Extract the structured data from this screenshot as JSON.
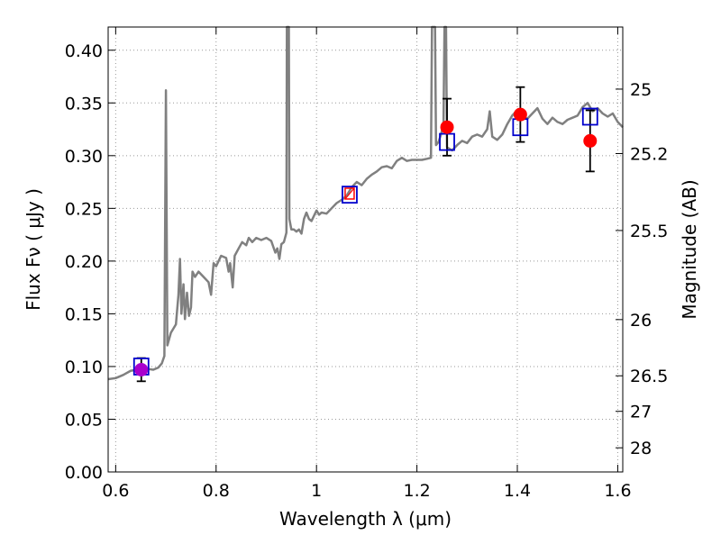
{
  "chart_data": {
    "type": "line",
    "xlabel": "Wavelength  λ (μm)",
    "ylabel": "Flux  Fν  ( μJy )",
    "y2label": "Magnitude (AB)",
    "xlim": [
      0.585,
      1.61
    ],
    "ylim": [
      0.0,
      0.422
    ],
    "grid": true,
    "x_ticks": [
      {
        "value": 0.6,
        "label": "0.6"
      },
      {
        "value": 0.8,
        "label": "0.8"
      },
      {
        "value": 1.0,
        "label": "1"
      },
      {
        "value": 1.2,
        "label": "1.2"
      },
      {
        "value": 1.4,
        "label": "1.4"
      },
      {
        "value": 1.6,
        "label": "1.6"
      }
    ],
    "y_ticks": [
      {
        "value": 0.0,
        "label": "0.00"
      },
      {
        "value": 0.05,
        "label": "0.05"
      },
      {
        "value": 0.1,
        "label": "0.10"
      },
      {
        "value": 0.15,
        "label": "0.15"
      },
      {
        "value": 0.2,
        "label": "0.20"
      },
      {
        "value": 0.25,
        "label": "0.25"
      },
      {
        "value": 0.3,
        "label": "0.30"
      },
      {
        "value": 0.35,
        "label": "0.35"
      },
      {
        "value": 0.4,
        "label": "0.40"
      }
    ],
    "y2_ticks": [
      {
        "flux": 0.3631,
        "label": "25"
      },
      {
        "flux": 0.302,
        "label": "25.2"
      },
      {
        "flux": 0.229,
        "label": "25.5"
      },
      {
        "flux": 0.1445,
        "label": "26"
      },
      {
        "flux": 0.0912,
        "label": "26.5"
      },
      {
        "flux": 0.0575,
        "label": "27"
      },
      {
        "flux": 0.0229,
        "label": "28"
      }
    ],
    "colors": {
      "spectrum": "#808080",
      "observed": "#ff0000",
      "model": "#0000cc",
      "overlap": "#aa00cc",
      "errorbar": "#000000",
      "grid": "#999999"
    },
    "series": [
      {
        "kind": "model_spectrum",
        "points": [
          [
            0.585,
            0.088
          ],
          [
            0.6,
            0.089
          ],
          [
            0.615,
            0.092
          ],
          [
            0.63,
            0.096
          ],
          [
            0.645,
            0.097
          ],
          [
            0.66,
            0.098
          ],
          [
            0.675,
            0.097
          ],
          [
            0.685,
            0.099
          ],
          [
            0.692,
            0.103
          ],
          [
            0.697,
            0.11
          ],
          [
            0.7,
            0.362
          ],
          [
            0.703,
            0.12
          ],
          [
            0.71,
            0.132
          ],
          [
            0.72,
            0.14
          ],
          [
            0.725,
            0.168
          ],
          [
            0.728,
            0.202
          ],
          [
            0.731,
            0.15
          ],
          [
            0.735,
            0.178
          ],
          [
            0.738,
            0.145
          ],
          [
            0.742,
            0.17
          ],
          [
            0.746,
            0.148
          ],
          [
            0.75,
            0.156
          ],
          [
            0.753,
            0.19
          ],
          [
            0.758,
            0.185
          ],
          [
            0.765,
            0.19
          ],
          [
            0.775,
            0.185
          ],
          [
            0.785,
            0.18
          ],
          [
            0.79,
            0.168
          ],
          [
            0.795,
            0.198
          ],
          [
            0.8,
            0.195
          ],
          [
            0.81,
            0.205
          ],
          [
            0.82,
            0.203
          ],
          [
            0.825,
            0.19
          ],
          [
            0.828,
            0.198
          ],
          [
            0.833,
            0.175
          ],
          [
            0.837,
            0.205
          ],
          [
            0.845,
            0.212
          ],
          [
            0.852,
            0.218
          ],
          [
            0.86,
            0.215
          ],
          [
            0.865,
            0.222
          ],
          [
            0.872,
            0.218
          ],
          [
            0.88,
            0.222
          ],
          [
            0.89,
            0.22
          ],
          [
            0.9,
            0.222
          ],
          [
            0.91,
            0.219
          ],
          [
            0.918,
            0.208
          ],
          [
            0.922,
            0.212
          ],
          [
            0.926,
            0.202
          ],
          [
            0.93,
            0.216
          ],
          [
            0.935,
            0.218
          ],
          [
            0.94,
            0.227
          ],
          [
            0.941,
            0.422
          ],
          [
            0.945,
            0.422
          ],
          [
            0.946,
            0.24
          ],
          [
            0.95,
            0.23
          ],
          [
            0.955,
            0.23
          ],
          [
            0.96,
            0.228
          ],
          [
            0.965,
            0.23
          ],
          [
            0.97,
            0.226
          ],
          [
            0.975,
            0.24
          ],
          [
            0.98,
            0.246
          ],
          [
            0.985,
            0.24
          ],
          [
            0.99,
            0.238
          ],
          [
            1.0,
            0.248
          ],
          [
            1.005,
            0.244
          ],
          [
            1.01,
            0.246
          ],
          [
            1.02,
            0.245
          ],
          [
            1.03,
            0.25
          ],
          [
            1.04,
            0.255
          ],
          [
            1.05,
            0.258
          ],
          [
            1.06,
            0.262
          ],
          [
            1.07,
            0.27
          ],
          [
            1.08,
            0.275
          ],
          [
            1.09,
            0.272
          ],
          [
            1.1,
            0.278
          ],
          [
            1.11,
            0.282
          ],
          [
            1.12,
            0.285
          ],
          [
            1.13,
            0.289
          ],
          [
            1.14,
            0.29
          ],
          [
            1.15,
            0.288
          ],
          [
            1.16,
            0.295
          ],
          [
            1.17,
            0.298
          ],
          [
            1.18,
            0.295
          ],
          [
            1.19,
            0.296
          ],
          [
            1.2,
            0.296
          ],
          [
            1.21,
            0.296
          ],
          [
            1.22,
            0.297
          ],
          [
            1.228,
            0.298
          ],
          [
            1.23,
            0.422
          ],
          [
            1.236,
            0.422
          ],
          [
            1.238,
            0.31
          ],
          [
            1.243,
            0.313
          ],
          [
            1.248,
            0.32
          ],
          [
            1.253,
            0.33
          ],
          [
            1.255,
            0.422
          ],
          [
            1.258,
            0.422
          ],
          [
            1.26,
            0.308
          ],
          [
            1.27,
            0.305
          ],
          [
            1.28,
            0.31
          ],
          [
            1.29,
            0.314
          ],
          [
            1.3,
            0.312
          ],
          [
            1.31,
            0.318
          ],
          [
            1.32,
            0.32
          ],
          [
            1.33,
            0.318
          ],
          [
            1.34,
            0.325
          ],
          [
            1.345,
            0.342
          ],
          [
            1.35,
            0.318
          ],
          [
            1.36,
            0.315
          ],
          [
            1.37,
            0.32
          ],
          [
            1.38,
            0.33
          ],
          [
            1.39,
            0.338
          ],
          [
            1.4,
            0.343
          ],
          [
            1.41,
            0.338
          ],
          [
            1.42,
            0.335
          ],
          [
            1.43,
            0.34
          ],
          [
            1.44,
            0.345
          ],
          [
            1.45,
            0.335
          ],
          [
            1.46,
            0.33
          ],
          [
            1.47,
            0.336
          ],
          [
            1.48,
            0.332
          ],
          [
            1.49,
            0.33
          ],
          [
            1.5,
            0.334
          ],
          [
            1.51,
            0.336
          ],
          [
            1.52,
            0.338
          ],
          [
            1.53,
            0.346
          ],
          [
            1.54,
            0.35
          ],
          [
            1.55,
            0.342
          ],
          [
            1.56,
            0.345
          ],
          [
            1.57,
            0.34
          ],
          [
            1.58,
            0.337
          ],
          [
            1.59,
            0.34
          ],
          [
            1.6,
            0.332
          ],
          [
            1.61,
            0.327
          ]
        ]
      },
      {
        "kind": "observed_photometry",
        "points": [
          {
            "x": 0.651,
            "y": 0.097,
            "err": 0.011
          },
          {
            "x": 1.26,
            "y": 0.327,
            "err": 0.027
          },
          {
            "x": 1.406,
            "y": 0.339,
            "err": 0.026
          },
          {
            "x": 1.545,
            "y": 0.314,
            "err": 0.029
          }
        ]
      },
      {
        "kind": "model_photometry",
        "points": [
          {
            "x": 0.651,
            "y": 0.1
          },
          {
            "x": 1.066,
            "y": 0.263
          },
          {
            "x": 1.26,
            "y": 0.313
          },
          {
            "x": 1.406,
            "y": 0.327
          },
          {
            "x": 1.545,
            "y": 0.337
          }
        ]
      },
      {
        "kind": "observed_upper_marker",
        "points": [
          {
            "x": 1.066,
            "y": 0.264
          }
        ]
      }
    ]
  }
}
